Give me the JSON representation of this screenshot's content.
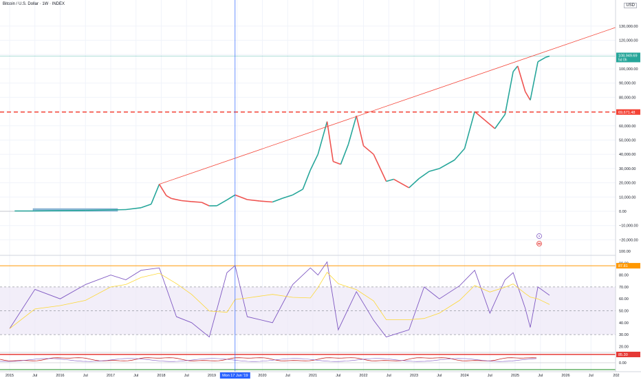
{
  "header": {
    "title": "Bitcoin / U.S. Dollar · 1W · INDEX",
    "currency": "USD"
  },
  "colors": {
    "up": "#26a69a",
    "down": "#ef5350",
    "rsi_line": "#7e57c2",
    "rsi_ma": "#fdd835",
    "resistance": "#f44336",
    "trendline": "#f44336",
    "crosshair": "#2962ff",
    "band_fill": "#ede7f6",
    "pre_data_bar": "#8fb8d6"
  },
  "time_axis": {
    "labels": [
      "2015",
      "Jul",
      "2016",
      "Jul",
      "2017",
      "Jul",
      "2018",
      "Jul",
      "2019",
      "Jul",
      "2020",
      "Jul",
      "2021",
      "Jul",
      "2022",
      "Jul",
      "2023",
      "Jul",
      "2024",
      "Jul",
      "2025",
      "Jul",
      "2026",
      "Jul",
      "202"
    ],
    "label_dates": [
      2015.0,
      2015.5,
      2016.0,
      2016.5,
      2017.0,
      2017.5,
      2018.0,
      2018.5,
      2019.0,
      2019.5,
      2020.0,
      2020.5,
      2021.0,
      2021.5,
      2022.0,
      2022.5,
      2023.0,
      2023.5,
      2024.0,
      2024.5,
      2025.0,
      2025.5,
      2026.0,
      2026.5,
      2027.0
    ],
    "crosshair_label": "Mon 17 Jun '19",
    "crosshair_date": 2019.46
  },
  "price_axis": {
    "ticks": [
      -20000,
      -10000,
      0,
      10000,
      20000,
      30000,
      40000,
      50000,
      60000,
      70000,
      80000,
      90000,
      100000,
      110000,
      120000,
      130000
    ],
    "tick_labels": [
      "−20,000.00",
      "−10,000.00",
      "0.00",
      "10,000.00",
      "20,000.00",
      "30,000.00",
      "40,000.00",
      "50,000.00",
      "60,000.00",
      "70,000.00",
      "80,000.00",
      "90,000.00",
      "100,000.00",
      "110,000.00",
      "120,000.00",
      "130,000.00"
    ],
    "last_price_label": "108,949.69",
    "last_price_sub": "5d 0h",
    "last_price": 108949.69,
    "resistance_label": "69,671.48",
    "resistance_value": 69671.48
  },
  "rsi_axis": {
    "ticks": [
      20,
      30,
      40,
      50,
      60,
      70,
      80,
      90,
      100
    ],
    "tick_labels": [
      "20.00",
      "30.00",
      "40.00",
      "50.00",
      "60.00",
      "70.00",
      "80.00",
      "90.00",
      "100.00"
    ],
    "marker_label": "87.81",
    "marker_value": 87.81,
    "band_upper": 70,
    "band_lower": 30,
    "mid": 50
  },
  "osc_axis": {
    "marker_label": "85.30",
    "zero_label": "0.00"
  },
  "chart_data": {
    "type": "line",
    "series": [
      {
        "x": [
          2015.1,
          2015.5,
          2016.0,
          2016.5,
          2017.0,
          2017.3,
          2017.6,
          2017.8,
          2017.96,
          2018.1,
          2018.2,
          2018.4,
          2018.6,
          2018.8,
          2018.95,
          2019.1,
          2019.3,
          2019.46,
          2019.7,
          2019.95,
          2020.2,
          2020.4,
          2020.6,
          2020.8,
          2020.95,
          2021.1,
          2021.28,
          2021.4,
          2021.55,
          2021.7,
          2021.86,
          2022.0,
          2022.2,
          2022.45,
          2022.6,
          2022.9,
          2023.1,
          2023.3,
          2023.5,
          2023.8,
          2024.0,
          2024.2,
          2024.4,
          2024.6,
          2024.8,
          2024.96,
          2025.05,
          2025.2,
          2025.3,
          2025.45,
          2025.6,
          2025.68
        ],
        "values": [
          250,
          260,
          420,
          650,
          960,
          1200,
          2500,
          5000,
          19000,
          11000,
          9000,
          7500,
          6800,
          6300,
          3800,
          3900,
          8000,
          11500,
          8200,
          7200,
          6500,
          9200,
          11500,
          15500,
          29000,
          40000,
          63000,
          35000,
          33000,
          47000,
          67000,
          46000,
          40000,
          21000,
          22500,
          16500,
          23000,
          28000,
          30000,
          36000,
          44000,
          70000,
          64000,
          58000,
          68000,
          98000,
          102000,
          84000,
          78000,
          105000,
          108000,
          108949.69
        ]
      },
      {
        "x": [
          2015.0,
          2015.5,
          2016.0,
          2016.5,
          2017.0,
          2017.3,
          2017.6,
          2017.96,
          2018.3,
          2018.6,
          2018.95,
          2019.3,
          2019.46,
          2019.7,
          2020.2,
          2020.6,
          2020.95,
          2021.1,
          2021.28,
          2021.5,
          2021.86,
          2022.2,
          2022.45,
          2022.9,
          2023.2,
          2023.5,
          2023.9,
          2024.2,
          2024.5,
          2024.8,
          2024.96,
          2025.2,
          2025.3,
          2025.45,
          2025.68
        ],
        "values": [
          35,
          68,
          60,
          72,
          80,
          76,
          84,
          86,
          45,
          40,
          28,
          82,
          88,
          45,
          40,
          72,
          86,
          80,
          91,
          34,
          66,
          42,
          28,
          34,
          70,
          60,
          71,
          84,
          48,
          76,
          82,
          52,
          36,
          70,
          63
        ]
      }
    ],
    "reference_lines": {
      "resistance": 69671.48
    },
    "ylim": [
      -20000,
      130000
    ]
  }
}
